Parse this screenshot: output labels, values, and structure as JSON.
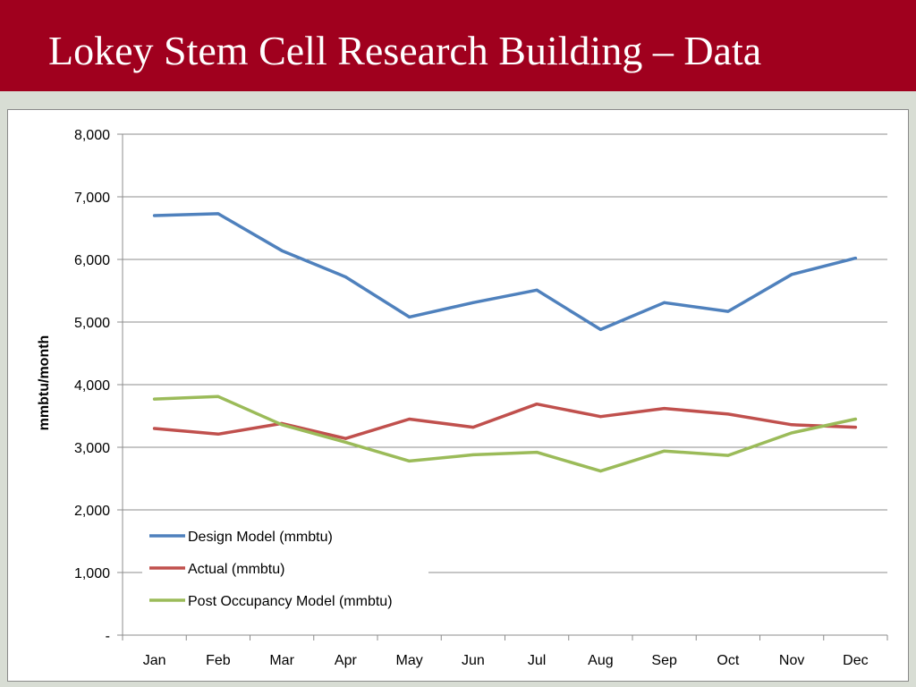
{
  "slide": {
    "title": "Lokey Stem Cell Research Building – Data"
  },
  "colors": {
    "title_bar": "#a0001e",
    "background": "#d8ddd4"
  },
  "chart_data": {
    "type": "line",
    "title": "",
    "xlabel": "",
    "ylabel": "mmbtu/month",
    "categories": [
      "Jan",
      "Feb",
      "Mar",
      "Apr",
      "May",
      "Jun",
      "Jul",
      "Aug",
      "Sep",
      "Oct",
      "Nov",
      "Dec"
    ],
    "ylim": [
      0,
      8000
    ],
    "yticks": [
      0,
      1000,
      2000,
      3000,
      4000,
      5000,
      6000,
      7000,
      8000
    ],
    "ytick_labels": [
      "-",
      "1,000",
      "2,000",
      "3,000",
      "4,000",
      "5,000",
      "6,000",
      "7,000",
      "8,000"
    ],
    "grid": true,
    "legend_position": "bottom-left",
    "series": [
      {
        "name": "Design Model (mmbtu)",
        "color": "#4f81bd",
        "values": [
          6700,
          6730,
          6140,
          5720,
          5080,
          5310,
          5510,
          4880,
          5310,
          5170,
          5760,
          6020
        ]
      },
      {
        "name": "Actual (mmbtu)",
        "color": "#c0504d",
        "values": [
          3300,
          3210,
          3380,
          3140,
          3450,
          3320,
          3690,
          3490,
          3620,
          3530,
          3360,
          3320
        ]
      },
      {
        "name": "Post Occupancy Model (mmbtu)",
        "color": "#9bbb59",
        "values": [
          3770,
          3810,
          3360,
          3080,
          2780,
          2880,
          2920,
          2620,
          2940,
          2870,
          3230,
          3450
        ]
      }
    ]
  }
}
